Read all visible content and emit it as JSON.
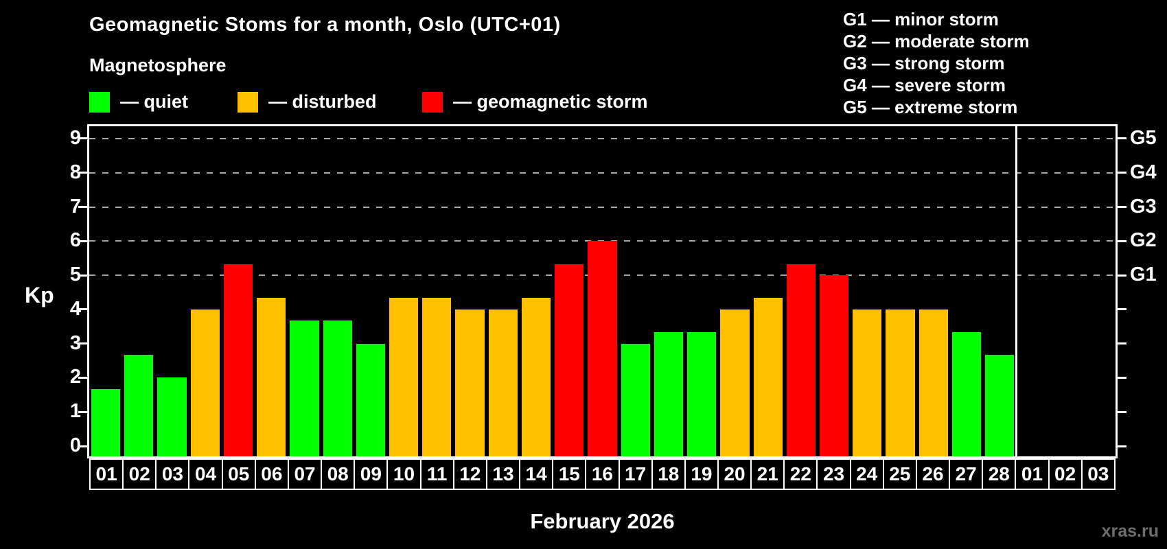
{
  "title": "Geomagnetic Stoms for a month, Oslo (UTC+01)",
  "subtitle": "Magnetosphere",
  "status_legend": [
    {
      "key": "quiet",
      "label": "— quiet",
      "color": "#00ff00"
    },
    {
      "key": "disturbed",
      "label": "— disturbed",
      "color": "#ffc000"
    },
    {
      "key": "storm",
      "label": "— geomagnetic storm",
      "color": "#ff0000"
    }
  ],
  "g_scale_legend": [
    {
      "code": "G1",
      "label": "G1 — minor storm"
    },
    {
      "code": "G2",
      "label": "G2 — moderate storm"
    },
    {
      "code": "G3",
      "label": "G3 — strong storm"
    },
    {
      "code": "G4",
      "label": "G4 — severe storm"
    },
    {
      "code": "G5",
      "label": "G5 — extreme storm"
    }
  ],
  "watermark": "xras.ru",
  "chart_data": {
    "type": "bar",
    "title": "Geomagnetic Stoms for a month, Oslo (UTC+01)",
    "xlabel": "February 2026",
    "ylabel": "Kp",
    "ylim": [
      0,
      9
    ],
    "yticks": [
      0,
      1,
      2,
      3,
      4,
      5,
      6,
      7,
      8,
      9
    ],
    "gridlines": [
      5,
      6,
      7,
      8,
      9
    ],
    "grid_style": "dashed",
    "right_axis_labels": [
      {
        "level": 5,
        "label": "G1"
      },
      {
        "level": 6,
        "label": "G2"
      },
      {
        "level": 7,
        "label": "G3"
      },
      {
        "level": 8,
        "label": "G4"
      },
      {
        "level": 9,
        "label": "G5"
      }
    ],
    "legend_position": "top",
    "categories": [
      "01",
      "02",
      "03",
      "04",
      "05",
      "06",
      "07",
      "08",
      "09",
      "10",
      "11",
      "12",
      "13",
      "14",
      "15",
      "16",
      "17",
      "18",
      "19",
      "20",
      "21",
      "22",
      "23",
      "24",
      "25",
      "26",
      "27",
      "28",
      "01",
      "02",
      "03"
    ],
    "month_boundary_after_index": 27,
    "series": [
      {
        "name": "Kp index",
        "values": [
          1.67,
          2.67,
          2.0,
          4.0,
          5.33,
          4.33,
          3.67,
          3.67,
          3.0,
          4.33,
          4.33,
          4.0,
          4.0,
          4.33,
          5.33,
          6.0,
          3.0,
          3.33,
          3.33,
          4.0,
          4.33,
          5.33,
          5.0,
          4.0,
          4.0,
          4.0,
          3.33,
          2.67,
          null,
          null,
          null
        ]
      }
    ],
    "bar_status": [
      "quiet",
      "quiet",
      "quiet",
      "disturbed",
      "storm",
      "disturbed",
      "quiet",
      "quiet",
      "quiet",
      "disturbed",
      "disturbed",
      "disturbed",
      "disturbed",
      "disturbed",
      "storm",
      "storm",
      "quiet",
      "quiet",
      "quiet",
      "disturbed",
      "disturbed",
      "storm",
      "storm",
      "disturbed",
      "disturbed",
      "disturbed",
      "quiet",
      "quiet",
      null,
      null,
      null
    ],
    "status_colors": {
      "quiet": "#00ff00",
      "disturbed": "#ffc000",
      "storm": "#ff0000"
    }
  }
}
